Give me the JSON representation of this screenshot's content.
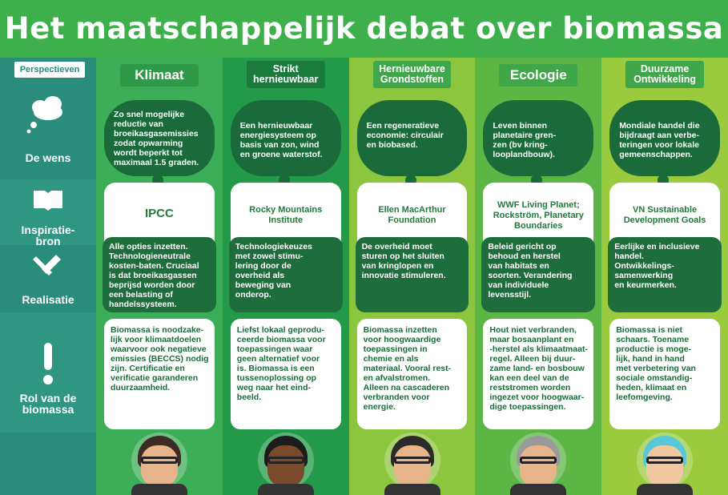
{
  "title": "Het maatschappelijk debat over biomassa",
  "row_labels": {
    "perspectives": "Perspectieven",
    "wish": "De wens",
    "inspiration": [
      "Inspiratie-",
      "bron"
    ],
    "realization": "Realisatie",
    "role": [
      "Rol van de",
      "biomassa"
    ]
  },
  "columns": [
    {
      "header": [
        "Klimaat"
      ],
      "wish": [
        "Zo snel mogelijke",
        "reductie van",
        "broeikasgasemissies",
        "zodat opwarming",
        "wordt beperkt tot",
        "maximaal 1.5 graden."
      ],
      "inspiration": [
        "IPCC"
      ],
      "realization": [
        "Alle opties inzetten.",
        "Technologieneutrale",
        "kosten-baten. Cruciaal",
        "is dat broeikasgassen",
        "beprijsd worden door",
        "een belasting of",
        "handelssysteem."
      ],
      "role": [
        "Biomassa is noodzake-",
        "lijk voor klimaatdoelen",
        "waarvoor ook negatieve",
        "emissies (BECCS) nodig",
        "zijn. Certificatie en",
        "verificatie garanderen",
        "duurzaamheid."
      ]
    },
    {
      "header": [
        "Strikt",
        "hernieuwbaar"
      ],
      "wish": [
        "Een hernieuwbaar",
        "energiesysteem op",
        "basis van zon, wind",
        "en groene waterstof."
      ],
      "inspiration": [
        "Rocky Mountains",
        "Institute"
      ],
      "realization": [
        "Technologiekeuzes",
        "met zowel stimu-",
        "lering door de",
        "overheid als",
        "beweging van",
        "onderop."
      ],
      "role": [
        "Liefst lokaal geprodu-",
        "ceerde biomassa voor",
        "toepassingen waar",
        "geen alternatief voor",
        "is. Biomassa is een",
        "tussenoplossing op",
        "weg naar het eind-",
        "beeld."
      ]
    },
    {
      "header": [
        "Hernieuwbare",
        "Grondstoffen"
      ],
      "wish": [
        "Een regeneratieve",
        "economie: circulair",
        "en biobased."
      ],
      "inspiration": [
        "Ellen MacArthur",
        "Foundation"
      ],
      "realization": [
        "De overheid moet",
        "sturen op het sluiten",
        "van kringlopen en",
        "innovatie stimuleren."
      ],
      "role": [
        "Biomassa inzetten",
        "voor hoogwaardige",
        "toepassingen in",
        "chemie en als",
        "materiaal. Vooral rest-",
        "en afvalstromen.",
        "Alleen na cascaderen",
        "verbranden voor",
        "energie."
      ]
    },
    {
      "header": [
        "Ecologie"
      ],
      "wish": [
        "Leven binnen",
        "planetaire gren-",
        "zen (bv kring-",
        "looplandbouw)."
      ],
      "inspiration": [
        "WWF Living Planet;",
        "Rockström, Planetary",
        "Boundaries"
      ],
      "realization": [
        "Beleid gericht op",
        "behoud en herstel",
        "van habitats en",
        "soorten. Verandering",
        "van individuele",
        "levensstijl."
      ],
      "role": [
        "Hout niet verbranden,",
        "maar bosaanplant en",
        "-herstel als klimaatmaat-",
        "regel. Alleen bij duur-",
        "zame land- en bosbouw",
        "kan een deel van de",
        "reststromen worden",
        "ingezet voor hoogwaar-",
        "dige toepassingen."
      ]
    },
    {
      "header": [
        "Duurzame",
        "Ontwikkeling"
      ],
      "wish": [
        "Mondiale handel die",
        "bijdraagt aan verbe-",
        "teringen voor lokale",
        "gemeenschappen."
      ],
      "inspiration": [
        "VN Sustainable",
        "Development Goals"
      ],
      "realization": [
        "Eerlijke en inclusieve",
        "handel.",
        "Ontwikkelings-",
        "samenwerking",
        "en keurmerken."
      ],
      "role": [
        "Biomassa is niet",
        "schaars. Toename",
        "productie is moge-",
        "lijk, hand in hand",
        "met verbetering van",
        "sociale omstandig-",
        "heden, klimaat en",
        "leefomgeving."
      ]
    }
  ]
}
